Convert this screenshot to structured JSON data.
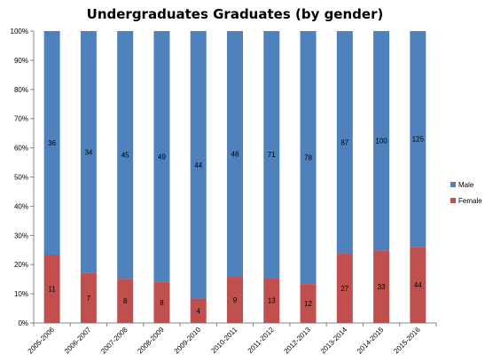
{
  "chart_data": {
    "type": "bar",
    "stacked": "percent",
    "title": "Undergraduates Graduates (by gender)",
    "xlabel": "",
    "ylabel": "",
    "ylim": [
      0,
      100
    ],
    "y_ticks": [
      "0%",
      "10%",
      "20%",
      "30%",
      "40%",
      "50%",
      "60%",
      "70%",
      "80%",
      "90%",
      "100%"
    ],
    "grid": false,
    "legend_position": "right",
    "categories": [
      "2005-2006",
      "2006-2007",
      "2007-2008",
      "2008-2009",
      "2009-2010",
      "2010-2011",
      "2011-2012",
      "2012-2013",
      "2013-2014",
      "2014-2015",
      "2015-2016"
    ],
    "series": [
      {
        "name": "Female",
        "color": "#c0504d",
        "values": [
          11,
          7,
          8,
          8,
          4,
          9,
          13,
          12,
          27,
          33,
          44
        ]
      },
      {
        "name": "Male",
        "color": "#4f81bd",
        "values": [
          36,
          34,
          45,
          49,
          44,
          48,
          71,
          78,
          87,
          100,
          125
        ]
      }
    ],
    "legend_order": [
      "Male",
      "Female"
    ]
  }
}
